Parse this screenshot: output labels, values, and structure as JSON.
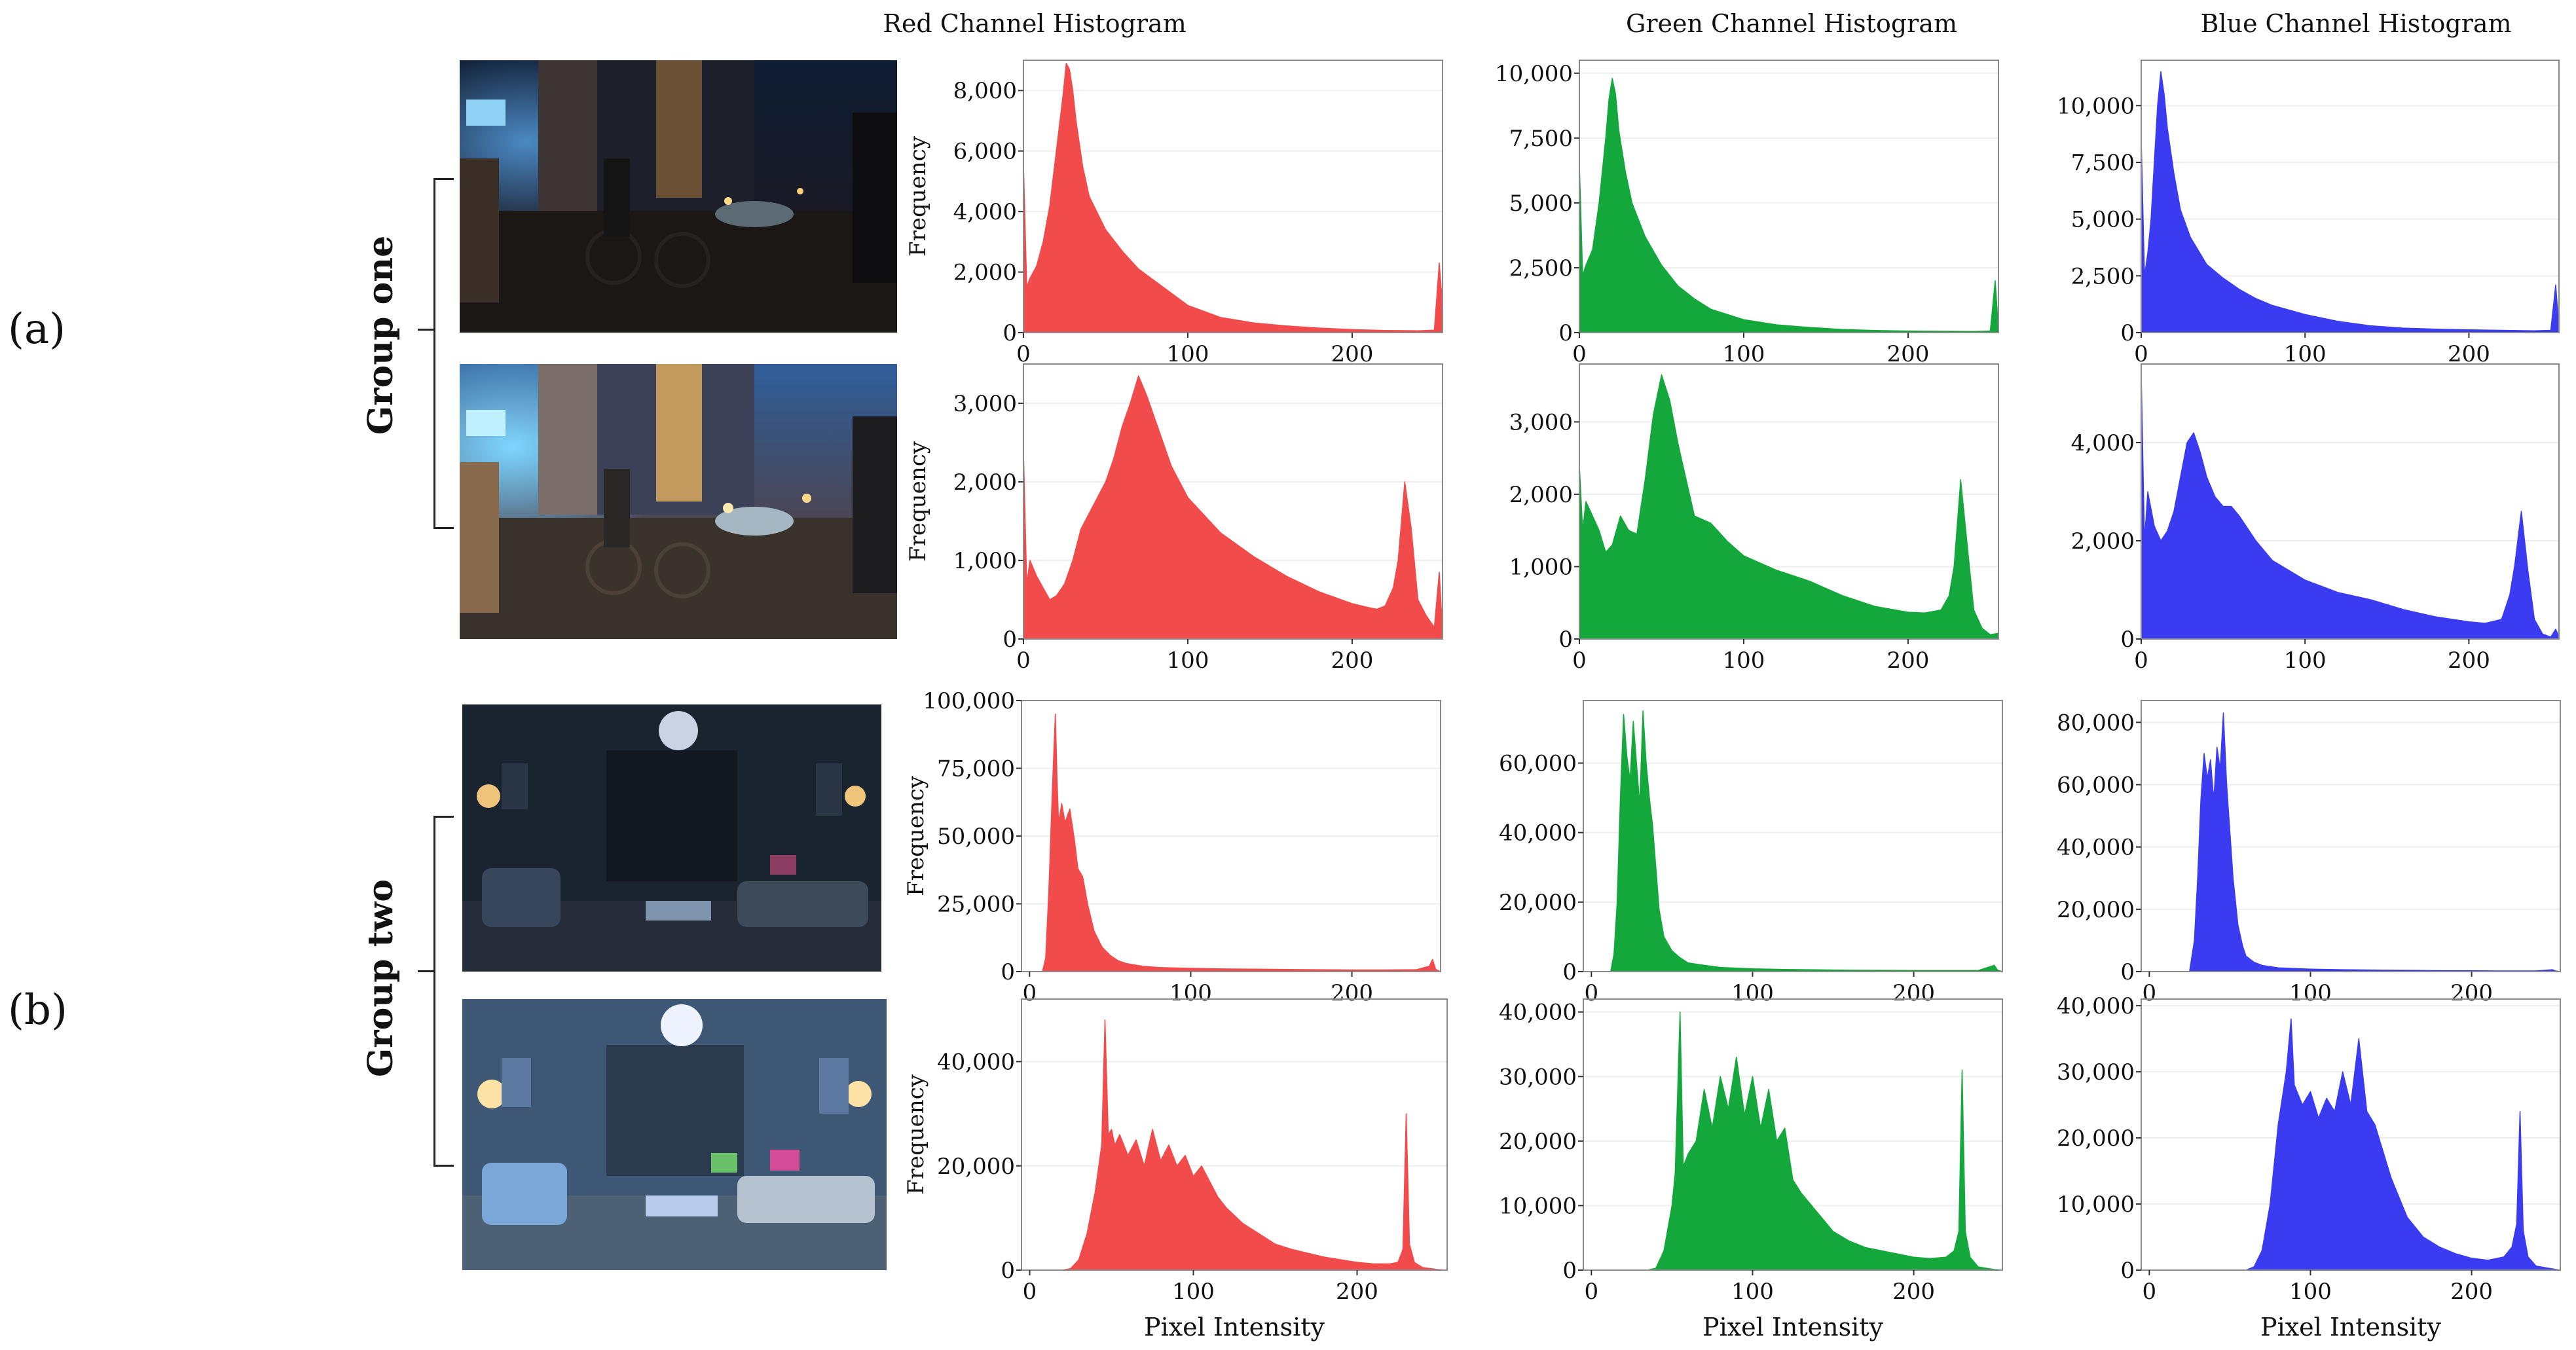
{
  "panel_labels": {
    "a": "(a)",
    "b": "(b)"
  },
  "group_labels": [
    "Group one",
    "Group two"
  ],
  "column_titles": [
    "Red Channel Histogram",
    "Green Channel Histogram",
    "Blue Channel Histogram"
  ],
  "colors": {
    "red": "#f24b4b",
    "green": "#14a83c",
    "blue": "#3b3bf2"
  },
  "chart_data": [
    {
      "id": "r1c1",
      "type": "area",
      "channel": "red",
      "ylabel": "Frequency",
      "xlabel": "",
      "xlim": [
        0,
        255
      ],
      "ylim": [
        0,
        9000
      ],
      "yticks": [
        0,
        2000,
        4000,
        6000,
        8000
      ],
      "xticks": [
        0,
        100,
        200
      ],
      "x": [
        0,
        2,
        4,
        8,
        12,
        16,
        20,
        24,
        26,
        28,
        30,
        32,
        36,
        40,
        50,
        60,
        70,
        80,
        100,
        120,
        140,
        160,
        180,
        200,
        220,
        240,
        250,
        253,
        255
      ],
      "y": [
        5600,
        1500,
        1800,
        2200,
        3000,
        4200,
        6000,
        7800,
        8900,
        8700,
        8000,
        7000,
        5500,
        4500,
        3400,
        2700,
        2100,
        1700,
        900,
        500,
        320,
        220,
        150,
        100,
        70,
        60,
        80,
        2300,
        900
      ]
    },
    {
      "id": "r1c2",
      "type": "area",
      "channel": "green",
      "ylabel": "",
      "xlabel": "",
      "xlim": [
        0,
        255
      ],
      "ylim": [
        0,
        10500
      ],
      "yticks": [
        0,
        2500,
        5000,
        7500,
        10000
      ],
      "xticks": [
        0,
        100,
        200
      ],
      "x": [
        0,
        2,
        4,
        8,
        12,
        16,
        18,
        20,
        22,
        24,
        28,
        32,
        40,
        50,
        60,
        70,
        80,
        100,
        120,
        140,
        160,
        180,
        200,
        220,
        240,
        250,
        253,
        255
      ],
      "y": [
        6500,
        2200,
        2600,
        3200,
        5000,
        7500,
        9000,
        9800,
        9200,
        7800,
        6200,
        5000,
        3700,
        2600,
        1800,
        1300,
        900,
        500,
        300,
        200,
        120,
        80,
        60,
        50,
        40,
        60,
        2000,
        100
      ]
    },
    {
      "id": "r1c3",
      "type": "area",
      "channel": "blue",
      "ylabel": "",
      "xlabel": "",
      "xlim": [
        0,
        255
      ],
      "ylim": [
        0,
        12000
      ],
      "yticks": [
        0,
        2500,
        5000,
        7500,
        10000
      ],
      "xticks": [
        0,
        100,
        200
      ],
      "x": [
        0,
        2,
        4,
        6,
        8,
        10,
        12,
        14,
        16,
        20,
        24,
        30,
        40,
        50,
        60,
        70,
        80,
        100,
        120,
        140,
        160,
        180,
        200,
        220,
        240,
        250,
        253,
        255
      ],
      "y": [
        8500,
        2500,
        3500,
        5000,
        7500,
        10000,
        11500,
        10500,
        9000,
        7000,
        5400,
        4200,
        3000,
        2400,
        1900,
        1500,
        1200,
        800,
        500,
        300,
        200,
        150,
        120,
        100,
        80,
        100,
        2100,
        200
      ]
    },
    {
      "id": "r2c1",
      "type": "area",
      "channel": "red",
      "ylabel": "Frequency",
      "xlabel": "",
      "xlim": [
        0,
        255
      ],
      "ylim": [
        0,
        3500
      ],
      "yticks": [
        0,
        1000,
        2000,
        3000
      ],
      "xticks": [
        0,
        100,
        200
      ],
      "x": [
        0,
        2,
        4,
        8,
        12,
        16,
        20,
        25,
        30,
        35,
        40,
        50,
        55,
        60,
        65,
        70,
        75,
        80,
        90,
        100,
        120,
        140,
        160,
        180,
        200,
        210,
        215,
        220,
        225,
        228,
        232,
        236,
        240,
        245,
        250,
        253,
        255
      ],
      "y": [
        2400,
        700,
        1000,
        800,
        650,
        500,
        550,
        700,
        1000,
        1400,
        1600,
        2000,
        2300,
        2700,
        3000,
        3350,
        3100,
        2800,
        2200,
        1800,
        1350,
        1050,
        800,
        600,
        450,
        400,
        380,
        420,
        650,
        1000,
        2000,
        1400,
        500,
        300,
        150,
        850,
        100
      ]
    },
    {
      "id": "r2c2",
      "type": "area",
      "channel": "green",
      "ylabel": "",
      "xlabel": "",
      "xlim": [
        0,
        255
      ],
      "ylim": [
        0,
        3800
      ],
      "yticks": [
        0,
        1000,
        2000,
        3000
      ],
      "xticks": [
        0,
        100,
        200
      ],
      "x": [
        0,
        2,
        4,
        8,
        12,
        16,
        20,
        25,
        30,
        35,
        40,
        45,
        50,
        55,
        60,
        65,
        70,
        80,
        90,
        100,
        120,
        140,
        160,
        180,
        200,
        210,
        220,
        225,
        228,
        232,
        236,
        240,
        245,
        250,
        255
      ],
      "y": [
        2400,
        1500,
        1900,
        1700,
        1500,
        1200,
        1300,
        1700,
        1500,
        1450,
        2200,
        3100,
        3650,
        3300,
        2700,
        2200,
        1700,
        1600,
        1350,
        1150,
        950,
        800,
        600,
        450,
        370,
        360,
        400,
        600,
        1000,
        2200,
        1300,
        400,
        150,
        60,
        80
      ]
    },
    {
      "id": "r2c3",
      "type": "area",
      "channel": "blue",
      "ylabel": "",
      "xlabel": "",
      "xlim": [
        0,
        255
      ],
      "ylim": [
        0,
        5600
      ],
      "yticks": [
        0,
        2000,
        4000
      ],
      "xticks": [
        0,
        100,
        200
      ],
      "x": [
        0,
        2,
        4,
        8,
        12,
        16,
        20,
        24,
        28,
        32,
        36,
        40,
        45,
        50,
        55,
        60,
        70,
        80,
        100,
        120,
        140,
        160,
        180,
        200,
        210,
        220,
        225,
        228,
        232,
        236,
        240,
        245,
        250,
        253,
        255
      ],
      "y": [
        5400,
        2000,
        3000,
        2300,
        2000,
        2200,
        2600,
        3300,
        4000,
        4200,
        3800,
        3300,
        2900,
        2700,
        2700,
        2500,
        2000,
        1600,
        1200,
        950,
        800,
        600,
        450,
        350,
        320,
        400,
        900,
        1500,
        2600,
        1400,
        400,
        100,
        40,
        200,
        50
      ]
    },
    {
      "id": "r3c1",
      "type": "area",
      "channel": "red",
      "ylabel": "Frequency",
      "xlabel": "",
      "xlim": [
        -5,
        255
      ],
      "ylim": [
        0,
        100000
      ],
      "yticks": [
        0,
        25000,
        50000,
        75000,
        100000
      ],
      "xticks": [
        0,
        100,
        200
      ],
      "x": [
        0,
        8,
        10,
        12,
        14,
        15,
        16,
        17,
        18,
        20,
        22,
        25,
        28,
        30,
        33,
        36,
        40,
        45,
        50,
        55,
        60,
        70,
        80,
        100,
        120,
        140,
        160,
        180,
        200,
        220,
        240,
        248,
        250,
        252,
        255
      ],
      "y": [
        0,
        0,
        5000,
        30000,
        65000,
        80000,
        95000,
        72000,
        55000,
        62000,
        55000,
        60000,
        48000,
        38000,
        35000,
        25000,
        15000,
        9000,
        6000,
        4000,
        3000,
        2000,
        1500,
        1200,
        1000,
        900,
        800,
        700,
        600,
        600,
        700,
        2000,
        4500,
        800,
        0
      ]
    },
    {
      "id": "r3c2",
      "type": "area",
      "channel": "green",
      "ylabel": "",
      "xlabel": "",
      "xlim": [
        -5,
        255
      ],
      "ylim": [
        0,
        78000
      ],
      "yticks": [
        0,
        20000,
        40000,
        60000
      ],
      "xticks": [
        0,
        100,
        200
      ],
      "x": [
        0,
        12,
        14,
        16,
        18,
        20,
        22,
        24,
        26,
        28,
        30,
        32,
        34,
        36,
        38,
        40,
        42,
        45,
        50,
        55,
        60,
        70,
        80,
        100,
        120,
        140,
        160,
        180,
        200,
        220,
        240,
        250,
        252,
        255
      ],
      "y": [
        0,
        0,
        5000,
        20000,
        50000,
        74000,
        62000,
        55000,
        72000,
        60000,
        48000,
        75000,
        60000,
        50000,
        42000,
        30000,
        18000,
        10000,
        6000,
        4000,
        2500,
        1800,
        1200,
        800,
        600,
        500,
        400,
        350,
        300,
        300,
        300,
        1800,
        400,
        0
      ]
    },
    {
      "id": "r3c3",
      "type": "area",
      "channel": "blue",
      "ylabel": "",
      "xlabel": "",
      "xlim": [
        -5,
        255
      ],
      "ylim": [
        0,
        87000
      ],
      "yticks": [
        0,
        20000,
        40000,
        60000,
        80000
      ],
      "xticks": [
        0,
        100,
        200
      ],
      "x": [
        0,
        25,
        28,
        30,
        32,
        34,
        36,
        38,
        40,
        42,
        44,
        46,
        48,
        50,
        52,
        55,
        58,
        60,
        65,
        70,
        80,
        100,
        120,
        140,
        160,
        180,
        200,
        220,
        240,
        250,
        252,
        255
      ],
      "y": [
        0,
        0,
        10000,
        30000,
        55000,
        70000,
        62000,
        68000,
        55000,
        72000,
        65000,
        83000,
        60000,
        45000,
        30000,
        15000,
        8000,
        5000,
        3000,
        2000,
        1200,
        800,
        600,
        500,
        400,
        300,
        250,
        200,
        200,
        600,
        200,
        0
      ]
    },
    {
      "id": "r4c1",
      "type": "area",
      "channel": "red",
      "ylabel": "Frequency",
      "xlabel": "Pixel Intensity",
      "xlim": [
        -5,
        255
      ],
      "ylim": [
        0,
        52000
      ],
      "yticks": [
        0,
        20000,
        40000
      ],
      "xticks": [
        0,
        100,
        200
      ],
      "x": [
        0,
        20,
        25,
        30,
        35,
        40,
        44,
        46,
        48,
        50,
        52,
        55,
        60,
        65,
        70,
        75,
        80,
        85,
        90,
        95,
        100,
        105,
        110,
        115,
        120,
        130,
        140,
        150,
        160,
        180,
        200,
        210,
        220,
        225,
        228,
        230,
        232,
        235,
        240,
        250,
        255
      ],
      "y": [
        0,
        0,
        300,
        2000,
        7000,
        15000,
        24000,
        48000,
        26000,
        27000,
        24000,
        26000,
        22000,
        25000,
        20000,
        27000,
        21000,
        24000,
        20000,
        22000,
        18000,
        20000,
        17000,
        14000,
        12000,
        9000,
        7000,
        5000,
        4000,
        2500,
        1500,
        1200,
        1200,
        1500,
        4000,
        30000,
        5000,
        1500,
        500,
        100,
        0
      ]
    },
    {
      "id": "r4c2",
      "type": "area",
      "channel": "green",
      "ylabel": "",
      "xlabel": "Pixel Intensity",
      "xlim": [
        -5,
        255
      ],
      "ylim": [
        0,
        42000
      ],
      "yticks": [
        0,
        10000,
        20000,
        30000,
        40000
      ],
      "xticks": [
        0,
        100,
        200
      ],
      "x": [
        0,
        35,
        40,
        45,
        50,
        52,
        55,
        57,
        60,
        65,
        70,
        75,
        80,
        85,
        90,
        95,
        100,
        105,
        110,
        115,
        120,
        125,
        130,
        140,
        150,
        160,
        170,
        180,
        200,
        210,
        220,
        225,
        228,
        230,
        232,
        235,
        240,
        250,
        255
      ],
      "y": [
        0,
        0,
        300,
        3000,
        10000,
        15000,
        40000,
        16000,
        18000,
        20000,
        28000,
        22000,
        30000,
        25000,
        33000,
        24000,
        30000,
        22000,
        28000,
        20000,
        22000,
        14000,
        12000,
        9000,
        6000,
        4500,
        3500,
        3000,
        2000,
        1800,
        2000,
        3000,
        6000,
        31000,
        6000,
        2000,
        500,
        100,
        0
      ]
    },
    {
      "id": "r4c3",
      "type": "area",
      "channel": "blue",
      "ylabel": "",
      "xlabel": "Pixel Intensity",
      "xlim": [
        -5,
        255
      ],
      "ylim": [
        0,
        41000
      ],
      "yticks": [
        0,
        10000,
        20000,
        30000,
        40000
      ],
      "xticks": [
        0,
        100,
        200
      ],
      "x": [
        0,
        60,
        65,
        70,
        75,
        80,
        85,
        88,
        90,
        95,
        100,
        105,
        110,
        115,
        120,
        125,
        130,
        135,
        140,
        145,
        150,
        155,
        160,
        170,
        180,
        190,
        200,
        210,
        220,
        225,
        228,
        230,
        232,
        235,
        240,
        250,
        255
      ],
      "y": [
        0,
        0,
        500,
        3000,
        10000,
        22000,
        30000,
        38000,
        28000,
        25000,
        27000,
        23000,
        26000,
        24000,
        30000,
        25000,
        35000,
        24000,
        22000,
        18000,
        14000,
        11000,
        8000,
        5000,
        3500,
        2500,
        1800,
        1500,
        2000,
        3500,
        7000,
        24000,
        6000,
        2000,
        600,
        200,
        0
      ]
    }
  ]
}
